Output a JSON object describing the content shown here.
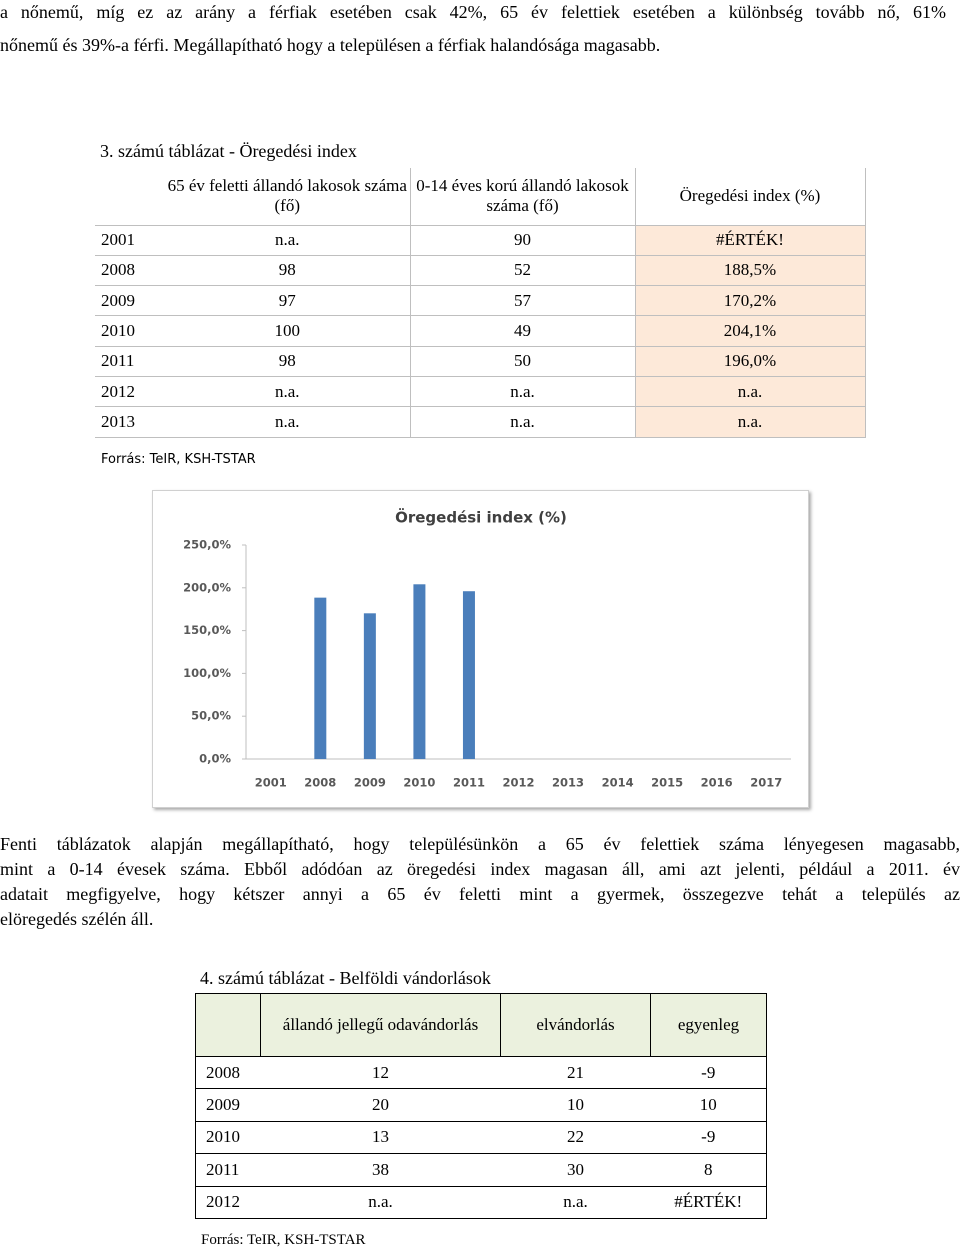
{
  "intro": {
    "lines": [
      "a nőnemű, míg ez az arány a férfiak esetében csak 42%, 65 év felettiek esetében a különbség tovább nő, 61%",
      "nőnemű és 39%-a férfi. Megállapítható hogy a településen a férfiak halandósága magasabb."
    ]
  },
  "table3": {
    "caption": "3. számú táblázat - Öregedési index",
    "headers": [
      "65 év feletti állandó lakosok száma (fő)",
      "0-14 éves korú állandó lakosok száma (fő)",
      "Öregedési index (%)"
    ],
    "rows": [
      [
        "2001",
        "n.a.",
        "90",
        "#ÉRTÉK!"
      ],
      [
        "2008",
        "98",
        "52",
        "188,5%"
      ],
      [
        "2009",
        "97",
        "57",
        "170,2%"
      ],
      [
        "2010",
        "100",
        "49",
        "204,1%"
      ],
      [
        "2011",
        "98",
        "50",
        "196,0%"
      ],
      [
        "2012",
        "n.a.",
        "n.a.",
        "n.a."
      ],
      [
        "2013",
        "n.a.",
        "n.a.",
        "n.a."
      ]
    ],
    "source": "Forrás: TeIR, KSH-TSTAR"
  },
  "chart_data": {
    "type": "bar",
    "title": "Öregedési index (%)",
    "categories": [
      "2001",
      "2008",
      "2009",
      "2010",
      "2011",
      "2012",
      "2013",
      "2014",
      "2015",
      "2016",
      "2017"
    ],
    "values": [
      null,
      188.5,
      170.2,
      204.1,
      196.0,
      null,
      null,
      null,
      null,
      null,
      null
    ],
    "color": "#4a7ebb",
    "ylim": [
      0,
      250
    ],
    "yticks": [
      {
        "value": 0,
        "label": "0,0%"
      },
      {
        "value": 50,
        "label": "50,0%"
      },
      {
        "value": 100,
        "label": "100,0%"
      },
      {
        "value": 150,
        "label": "150,0%"
      },
      {
        "value": 200,
        "label": "200,0%"
      },
      {
        "value": 250,
        "label": "250,0%"
      }
    ],
    "grid": false
  },
  "paragraph": {
    "lines": [
      "Fenti táblázatok alapján megállapítható, hogy településünkön a 65 év felettiek száma lényegesen magasabb,",
      "mint a 0-14 évesek száma. Ebből adódóan az öregedési index magasan áll, ami azt jelenti, például a 2011. év",
      "adatait megfigyelve, hogy kétszer annyi a 65 év feletti mint a gyermek, összegezve tehát a település az",
      "elöregedés szélén áll."
    ]
  },
  "table4": {
    "caption": "4. számú táblázat - Belföldi vándorlások",
    "headers": [
      "állandó jellegű odavándorlás",
      "elvándorlás",
      "egyenleg"
    ],
    "rows": [
      [
        "2008",
        "12",
        "21",
        "-9"
      ],
      [
        "2009",
        "20",
        "10",
        "10"
      ],
      [
        "2010",
        "13",
        "22",
        "-9"
      ],
      [
        "2011",
        "38",
        "30",
        "8"
      ],
      [
        "2012",
        "n.a.",
        "n.a.",
        "#ÉRTÉK!"
      ]
    ],
    "source": "Forrás: TeIR, KSH-TSTAR"
  }
}
